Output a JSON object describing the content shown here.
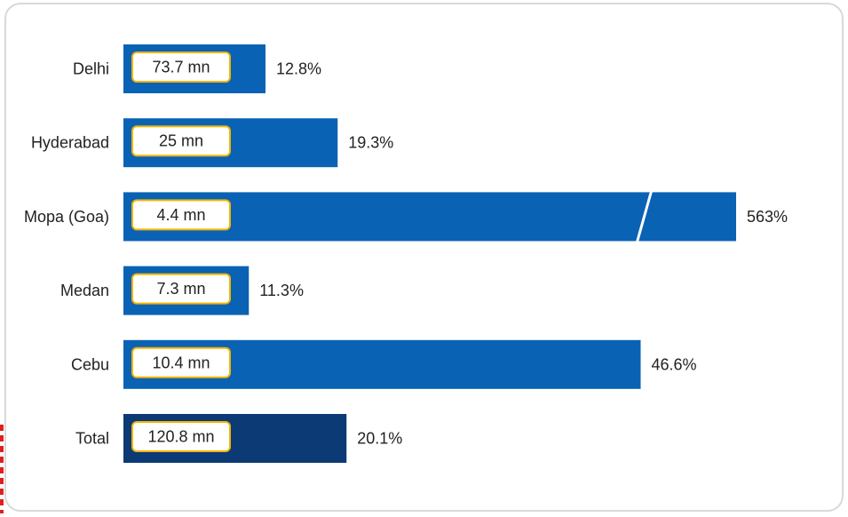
{
  "chart_data": {
    "type": "bar",
    "orientation": "horizontal",
    "categories": [
      "Delhi",
      "Hyderabad",
      "Mopa (Goa)",
      "Medan",
      "Cebu",
      "Total"
    ],
    "values": [
      12.8,
      19.3,
      563,
      11.3,
      46.6,
      20.1
    ],
    "value_labels": [
      "12.8%",
      "19.3%",
      "563%",
      "11.3%",
      "46.6%",
      "20.1%"
    ],
    "volume_labels": [
      "73.7 mn",
      "25 mn",
      "4.4 mn",
      "7.3 mn",
      "10.4 mn",
      "120.8 mn"
    ],
    "axis_break_category": "Mopa (Goa)",
    "title": "",
    "xlabel": "",
    "ylabel": "",
    "grid": false,
    "colors": {
      "bar": "#0a62b4",
      "total_bar": "#0c3a74",
      "label_box_border": "#f5b400",
      "label_box_fill": "#ffffff",
      "break_line": "#ffffff"
    }
  }
}
